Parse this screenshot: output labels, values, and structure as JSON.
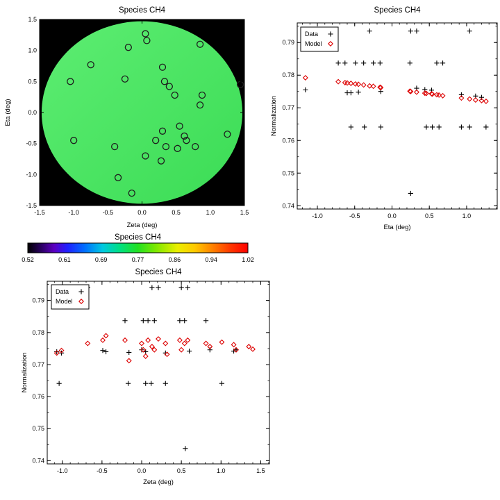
{
  "figure": {
    "background": "#ffffff"
  },
  "colors": {
    "data_marker": "#000000",
    "model_marker": "#dd0000",
    "map_background": "#000000",
    "disk_green": "#46e45f"
  },
  "chart_data": [
    {
      "id": "map",
      "type": "scatter",
      "title": "Species CH4",
      "xlabel": "Zeta (deg)",
      "ylabel": "Eta (deg)",
      "xlim": [
        -1.5,
        1.5
      ],
      "ylim": [
        -1.5,
        1.5
      ],
      "xticks": [
        -1.5,
        -1.0,
        -0.5,
        0.0,
        0.5,
        1.0,
        1.5
      ],
      "xtick_labels": [
        "-1.5",
        "-1.0",
        "-0.5",
        "0.0",
        "0.5",
        "1.0",
        "1.5"
      ],
      "yticks": [
        -1.5,
        -1.0,
        -0.5,
        0.0,
        0.5,
        1.0,
        1.5
      ],
      "ytick_labels": [
        "-1.5",
        "-1.0",
        "-0.5",
        "0.0",
        "0.5",
        "1.0",
        "1.5"
      ],
      "background": "#000000",
      "disk": {
        "center": [
          0,
          0
        ],
        "radius": 1.47,
        "color_top_left": "#5ded72",
        "color_bottom_right": "#3bdc55"
      },
      "series": [
        {
          "name": "sightline-positions",
          "marker": "open-circle",
          "color": "#1e1e1e",
          "points": [
            [
              0.05,
              1.27
            ],
            [
              0.07,
              1.16
            ],
            [
              -0.2,
              1.05
            ],
            [
              0.85,
              1.1
            ],
            [
              -0.75,
              0.77
            ],
            [
              0.3,
              0.73
            ],
            [
              -1.05,
              0.5
            ],
            [
              -0.25,
              0.54
            ],
            [
              0.33,
              0.5
            ],
            [
              0.4,
              0.42
            ],
            [
              0.48,
              0.28
            ],
            [
              1.44,
              0.45
            ],
            [
              0.88,
              0.28
            ],
            [
              0.85,
              0.12
            ],
            [
              -1.0,
              -0.45
            ],
            [
              -0.4,
              -0.55
            ],
            [
              0.2,
              -0.45
            ],
            [
              0.3,
              -0.3
            ],
            [
              0.55,
              -0.22
            ],
            [
              0.35,
              -0.55
            ],
            [
              0.52,
              -0.58
            ],
            [
              0.65,
              -0.45
            ],
            [
              0.78,
              -0.55
            ],
            [
              1.25,
              -0.35
            ],
            [
              0.05,
              -0.7
            ],
            [
              0.28,
              -0.78
            ],
            [
              -0.35,
              -1.05
            ],
            [
              -0.15,
              -1.3
            ],
            [
              0.62,
              -0.38
            ]
          ]
        }
      ]
    },
    {
      "id": "colorbar",
      "type": "colorbar",
      "title": "Species CH4",
      "tick_labels": [
        "0.52",
        "0.61",
        "0.69",
        "0.77",
        "0.86",
        "0.94",
        "1.02"
      ],
      "gradient": [
        [
          0.0,
          "#000000"
        ],
        [
          0.06,
          "#2a0060"
        ],
        [
          0.12,
          "#5c00c0"
        ],
        [
          0.18,
          "#2020ff"
        ],
        [
          0.26,
          "#0070ff"
        ],
        [
          0.34,
          "#00c8e0"
        ],
        [
          0.42,
          "#00e080"
        ],
        [
          0.5,
          "#22e022"
        ],
        [
          0.58,
          "#7ce800"
        ],
        [
          0.68,
          "#eaee00"
        ],
        [
          0.76,
          "#ffc800"
        ],
        [
          0.84,
          "#ff8000"
        ],
        [
          0.92,
          "#ff3800"
        ],
        [
          1.0,
          "#ff0000"
        ]
      ]
    },
    {
      "id": "eta",
      "type": "scatter",
      "title": "Species CH4",
      "xlabel": "Eta (deg)",
      "ylabel": "Normalization",
      "xlim": [
        -1.27,
        1.41
      ],
      "ylim": [
        0.739,
        0.796
      ],
      "xticks": [
        -1.0,
        -0.5,
        0.0,
        0.5,
        1.0
      ],
      "xtick_labels": [
        "-1.0",
        "-0.5",
        "0.0",
        "0.5",
        "1.0"
      ],
      "yticks": [
        0.74,
        0.75,
        0.76,
        0.77,
        0.78,
        0.79
      ],
      "ytick_labels": [
        "0.74",
        "0.75",
        "0.76",
        "0.77",
        "0.78",
        "0.79"
      ],
      "legend": {
        "entries": [
          {
            "label": "Data",
            "marker": "plus",
            "color": "#000000"
          },
          {
            "label": "Model",
            "marker": "diamond",
            "color": "#dd0000"
          }
        ]
      },
      "series": [
        {
          "name": "Data",
          "marker": "plus",
          "color": "#000000",
          "points": [
            [
              -0.3,
              0.7935
            ],
            [
              0.25,
              0.7935
            ],
            [
              0.33,
              0.7935
            ],
            [
              1.04,
              0.7935
            ],
            [
              -0.72,
              0.7837
            ],
            [
              -0.63,
              0.7837
            ],
            [
              -0.49,
              0.7837
            ],
            [
              -0.38,
              0.7837
            ],
            [
              -0.25,
              0.7837
            ],
            [
              -0.16,
              0.7837
            ],
            [
              0.24,
              0.7837
            ],
            [
              0.6,
              0.7837
            ],
            [
              0.68,
              0.7837
            ],
            [
              -1.16,
              0.7755
            ],
            [
              -0.6,
              0.7746
            ],
            [
              -0.55,
              0.7746
            ],
            [
              -0.45,
              0.7748
            ],
            [
              -0.15,
              0.775
            ],
            [
              0.33,
              0.776
            ],
            [
              0.44,
              0.7756
            ],
            [
              0.53,
              0.7754
            ],
            [
              0.93,
              0.774
            ],
            [
              1.12,
              0.7736
            ],
            [
              1.2,
              0.7732
            ],
            [
              -0.55,
              0.7641
            ],
            [
              -0.37,
              0.7641
            ],
            [
              -0.15,
              0.7641
            ],
            [
              0.46,
              0.7641
            ],
            [
              0.54,
              0.7641
            ],
            [
              0.63,
              0.7641
            ],
            [
              0.93,
              0.7641
            ],
            [
              1.04,
              0.7641
            ],
            [
              1.26,
              0.7641
            ],
            [
              0.25,
              0.7438
            ]
          ]
        },
        {
          "name": "Model",
          "marker": "diamond",
          "color": "#dd0000",
          "points": [
            [
              -1.16,
              0.7792
            ],
            [
              -0.72,
              0.778
            ],
            [
              -0.63,
              0.7777
            ],
            [
              -0.6,
              0.7776
            ],
            [
              -0.55,
              0.7775
            ],
            [
              -0.49,
              0.7773
            ],
            [
              -0.45,
              0.7772
            ],
            [
              -0.38,
              0.777
            ],
            [
              -0.3,
              0.7767
            ],
            [
              -0.25,
              0.7766
            ],
            [
              -0.16,
              0.7763
            ],
            [
              -0.15,
              0.7762
            ],
            [
              0.24,
              0.7751
            ],
            [
              0.25,
              0.775
            ],
            [
              0.33,
              0.7748
            ],
            [
              0.44,
              0.7745
            ],
            [
              0.46,
              0.7744
            ],
            [
              0.53,
              0.7743
            ],
            [
              0.54,
              0.7742
            ],
            [
              0.6,
              0.774
            ],
            [
              0.63,
              0.7739
            ],
            [
              0.68,
              0.7737
            ],
            [
              0.93,
              0.773
            ],
            [
              1.04,
              0.7727
            ],
            [
              1.12,
              0.7724
            ],
            [
              1.2,
              0.7722
            ],
            [
              1.26,
              0.772
            ]
          ]
        }
      ]
    },
    {
      "id": "zeta",
      "type": "scatter",
      "title": "Species CH4",
      "xlabel": "Zeta (deg)",
      "ylabel": "Normalization",
      "xlim": [
        -1.19,
        1.61
      ],
      "ylim": [
        0.739,
        0.796
      ],
      "xticks": [
        -1.0,
        -0.5,
        0.0,
        0.5,
        1.0,
        1.5
      ],
      "xtick_labels": [
        "-1.0",
        "-0.5",
        "0.0",
        "0.5",
        "1.0",
        "1.5"
      ],
      "yticks": [
        0.74,
        0.75,
        0.76,
        0.77,
        0.78,
        0.79
      ],
      "ytick_labels": [
        "0.74",
        "0.75",
        "0.76",
        "0.77",
        "0.78",
        "0.79"
      ],
      "legend": {
        "entries": [
          {
            "label": "Data",
            "marker": "plus",
            "color": "#000000"
          },
          {
            "label": "Model",
            "marker": "diamond",
            "color": "#dd0000"
          }
        ]
      },
      "series": [
        {
          "name": "Data",
          "marker": "plus",
          "color": "#000000",
          "points": [
            [
              -0.68,
              0.794
            ],
            [
              0.13,
              0.794
            ],
            [
              0.21,
              0.794
            ],
            [
              0.5,
              0.794
            ],
            [
              0.58,
              0.794
            ],
            [
              -0.21,
              0.7837
            ],
            [
              0.02,
              0.7837
            ],
            [
              0.08,
              0.7837
            ],
            [
              0.16,
              0.7837
            ],
            [
              0.48,
              0.7837
            ],
            [
              0.54,
              0.7837
            ],
            [
              0.81,
              0.7837
            ],
            [
              -1.07,
              0.774
            ],
            [
              -1.01,
              0.7736
            ],
            [
              -0.49,
              0.7744
            ],
            [
              -0.45,
              0.774
            ],
            [
              -0.16,
              0.7738
            ],
            [
              0.0,
              0.7746
            ],
            [
              0.05,
              0.774
            ],
            [
              0.3,
              0.7736
            ],
            [
              0.6,
              0.7742
            ],
            [
              0.86,
              0.7746
            ],
            [
              1.16,
              0.7742
            ],
            [
              1.19,
              0.7746
            ],
            [
              -1.04,
              0.7641
            ],
            [
              -0.17,
              0.7641
            ],
            [
              0.05,
              0.7641
            ],
            [
              0.12,
              0.7641
            ],
            [
              0.3,
              0.7641
            ],
            [
              1.01,
              0.7641
            ],
            [
              0.55,
              0.7438
            ]
          ]
        },
        {
          "name": "Model",
          "marker": "diamond",
          "color": "#dd0000",
          "points": [
            [
              -1.07,
              0.7736
            ],
            [
              -1.01,
              0.7744
            ],
            [
              -0.68,
              0.7766
            ],
            [
              -0.49,
              0.7776
            ],
            [
              -0.45,
              0.779
            ],
            [
              -0.21,
              0.7776
            ],
            [
              -0.16,
              0.7712
            ],
            [
              0.0,
              0.7766
            ],
            [
              0.02,
              0.7746
            ],
            [
              0.05,
              0.7726
            ],
            [
              0.08,
              0.7776
            ],
            [
              0.13,
              0.7756
            ],
            [
              0.16,
              0.7746
            ],
            [
              0.21,
              0.778
            ],
            [
              0.3,
              0.7766
            ],
            [
              0.32,
              0.7732
            ],
            [
              0.48,
              0.7776
            ],
            [
              0.5,
              0.7746
            ],
            [
              0.54,
              0.7766
            ],
            [
              0.58,
              0.7776
            ],
            [
              0.81,
              0.7766
            ],
            [
              0.86,
              0.7756
            ],
            [
              1.01,
              0.777
            ],
            [
              1.16,
              0.7762
            ],
            [
              1.19,
              0.7746
            ],
            [
              1.35,
              0.7756
            ],
            [
              1.4,
              0.7748
            ]
          ]
        }
      ]
    }
  ]
}
